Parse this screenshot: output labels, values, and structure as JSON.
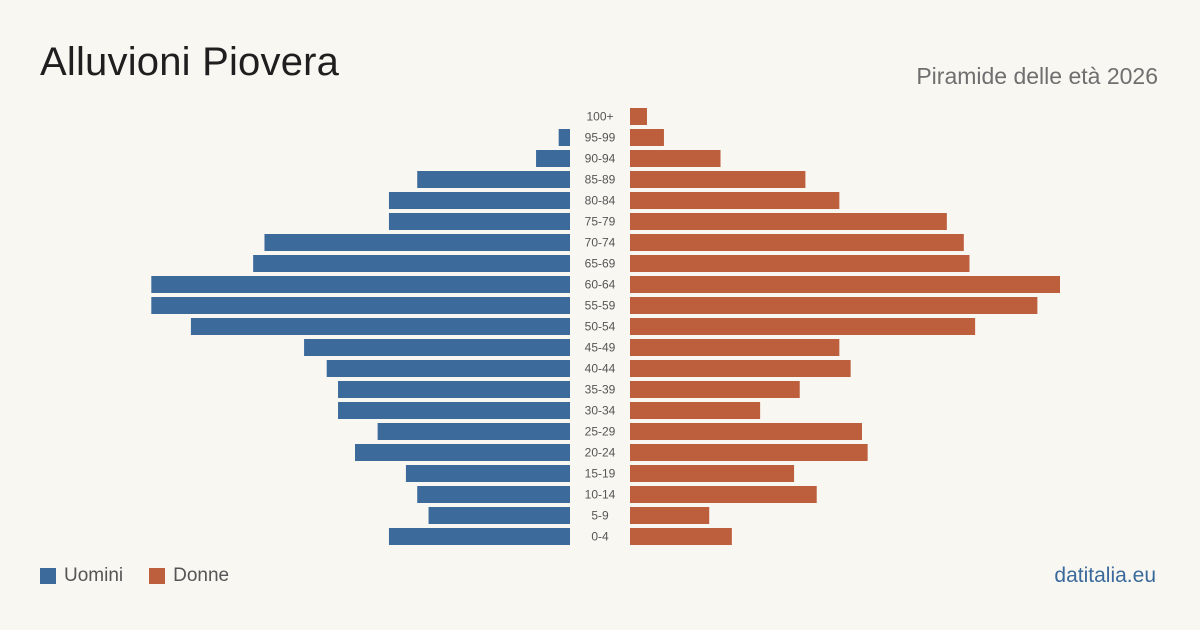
{
  "header": {
    "title": "Alluvioni Piovera",
    "subtitle": "Piramide delle età 2026"
  },
  "colors": {
    "men": "#3b6a9b",
    "women": "#bd5f3d"
  },
  "legend": {
    "men_label": "Uomini",
    "women_label": "Donne"
  },
  "brand": "datitalia.eu",
  "chart_data": {
    "type": "bar",
    "orientation": "horizontal-pyramid",
    "categories": [
      "100+",
      "95-99",
      "90-94",
      "85-89",
      "80-84",
      "75-79",
      "70-74",
      "65-69",
      "60-64",
      "55-59",
      "50-54",
      "45-49",
      "40-44",
      "35-39",
      "30-34",
      "25-29",
      "20-24",
      "15-19",
      "10-14",
      "5-9",
      "0-4"
    ],
    "series": [
      {
        "name": "Uomini",
        "values": [
          0,
          2,
          6,
          27,
          32,
          32,
          54,
          56,
          74,
          74,
          67,
          47,
          43,
          41,
          41,
          34,
          38,
          29,
          27,
          25,
          32
        ]
      },
      {
        "name": "Donne",
        "values": [
          3,
          6,
          16,
          31,
          37,
          56,
          59,
          60,
          76,
          72,
          61,
          37,
          39,
          30,
          23,
          41,
          42,
          29,
          33,
          14,
          18
        ]
      }
    ],
    "xlim": [
      0,
      76
    ],
    "legend_position": "bottom-left"
  }
}
